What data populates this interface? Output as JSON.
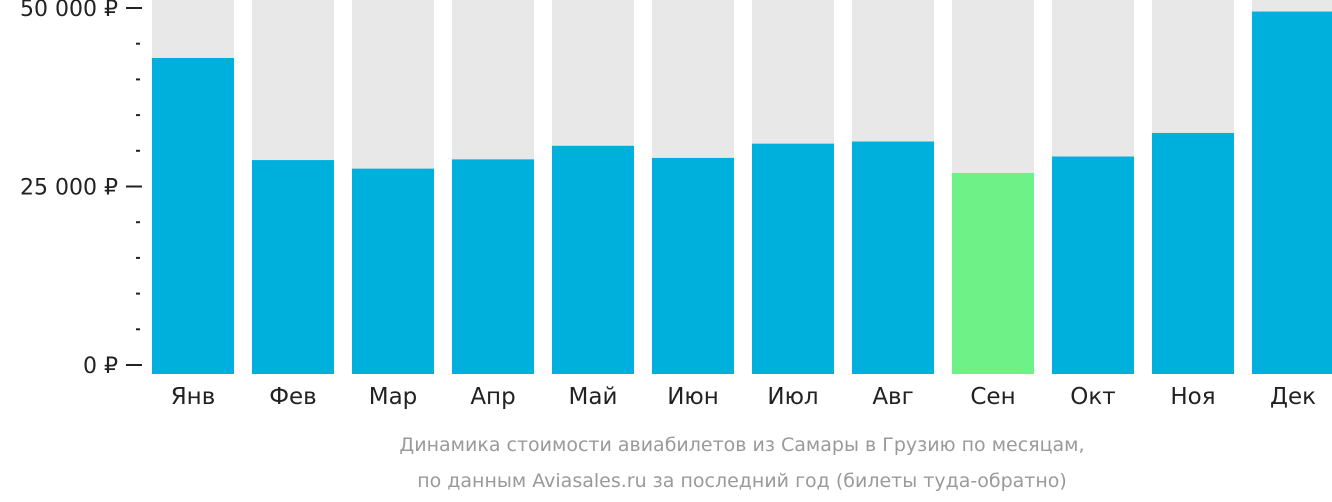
{
  "chart_data": {
    "type": "bar",
    "categories": [
      "Янв",
      "Фев",
      "Мар",
      "Апр",
      "Май",
      "Июн",
      "Июл",
      "Авг",
      "Сен",
      "Окт",
      "Ноя",
      "Дек"
    ],
    "values": [
      43000,
      28700,
      27500,
      28800,
      30700,
      29000,
      31000,
      31300,
      26900,
      29200,
      32500,
      49500
    ],
    "ylim": [
      0,
      50000
    ],
    "yticks": [
      {
        "value": 0,
        "label": "0 ₽"
      },
      {
        "value": 25000,
        "label": "25 000 ₽"
      },
      {
        "value": 50000,
        "label": "50 000 ₽"
      }
    ],
    "minor_tick_step": 5000,
    "highlight_index": 8,
    "grid": false,
    "legend": "none",
    "caption_lines": [
      "Динамика стоимости авиабилетов из Самары в Грузию по месяцам,",
      "по данным Aviasales.ru за последний год (билеты туда-обратно)"
    ]
  },
  "colors": {
    "bar": "#00b0dc",
    "bar_highlight": "#6ef287",
    "track": "#e8e8e8",
    "axis": "#222222",
    "text": "#222222",
    "caption": "#9a9a9a"
  }
}
